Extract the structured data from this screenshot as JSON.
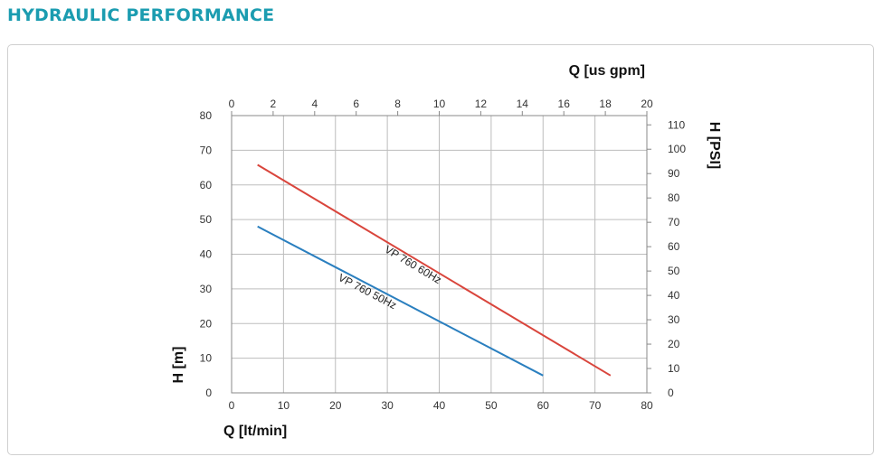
{
  "page": {
    "title": "HYDRAULIC PERFORMANCE"
  },
  "chart_data": {
    "type": "line",
    "xlabel": "Q [lt/min]",
    "ylabel": "H [m]",
    "x2label": "Q [us gpm]",
    "y2label": "H [PSI]",
    "xlim": [
      0,
      80
    ],
    "ylim": [
      0,
      80
    ],
    "x2lim": [
      0,
      20
    ],
    "y2lim": [
      0,
      113.8
    ],
    "x_ticks": [
      0,
      10,
      20,
      30,
      40,
      50,
      60,
      70,
      80
    ],
    "y_ticks": [
      0,
      10,
      20,
      30,
      40,
      50,
      60,
      70,
      80
    ],
    "x2_ticks": [
      0,
      2,
      4,
      6,
      8,
      10,
      12,
      14,
      16,
      18,
      20
    ],
    "y2_ticks": [
      0,
      10,
      20,
      30,
      40,
      50,
      60,
      70,
      80,
      90,
      100,
      110
    ],
    "grid": true,
    "series": [
      {
        "name": "VP 760 60Hz",
        "color": "#d9453c",
        "x": [
          5,
          73
        ],
        "y": [
          65.8,
          5
        ]
      },
      {
        "name": "VP 760 50Hz",
        "color": "#2a7fbf",
        "x": [
          5,
          60
        ],
        "y": [
          48,
          5
        ]
      }
    ]
  }
}
